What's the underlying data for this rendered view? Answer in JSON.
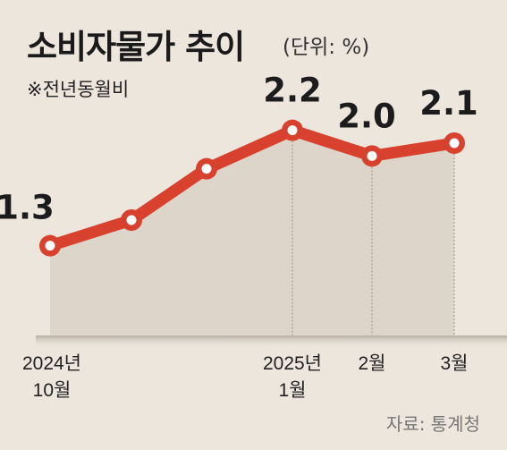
{
  "header": {
    "title": "소비자물가 추이",
    "unit": "(단위: %)",
    "subtitle": "※전년동월비"
  },
  "source": "자료: 통계청",
  "colors": {
    "line": "#d8412e",
    "area": "#ddd5ca",
    "background": "#ece6dc"
  },
  "chart_data": {
    "type": "area",
    "title": "소비자물가 추이",
    "subtitle": "※전년동월비",
    "unit": "(단위: %)",
    "x": [
      "2024-10",
      "2024-11",
      "2024-12",
      "2025-01",
      "2025-02",
      "2025-03"
    ],
    "series": [
      {
        "values": [
          1.3,
          1.5,
          1.9,
          2.2,
          2.0,
          2.1
        ]
      }
    ],
    "data_labels": [
      {
        "index": 0,
        "text": "1.3"
      },
      {
        "index": 3,
        "text": "2.2"
      },
      {
        "index": 4,
        "text": "2.0"
      },
      {
        "index": 5,
        "text": "2.1"
      }
    ],
    "x_tick_labels": [
      {
        "index": 0,
        "lines": [
          "2024년",
          "10월"
        ]
      },
      {
        "index": 3,
        "lines": [
          "2025년",
          "1월"
        ]
      },
      {
        "index": 4,
        "lines": [
          "2월"
        ]
      },
      {
        "index": 5,
        "lines": [
          "3월"
        ]
      }
    ],
    "ylim": [
      0.6,
      2.4
    ],
    "grid": false,
    "legend": "none"
  }
}
